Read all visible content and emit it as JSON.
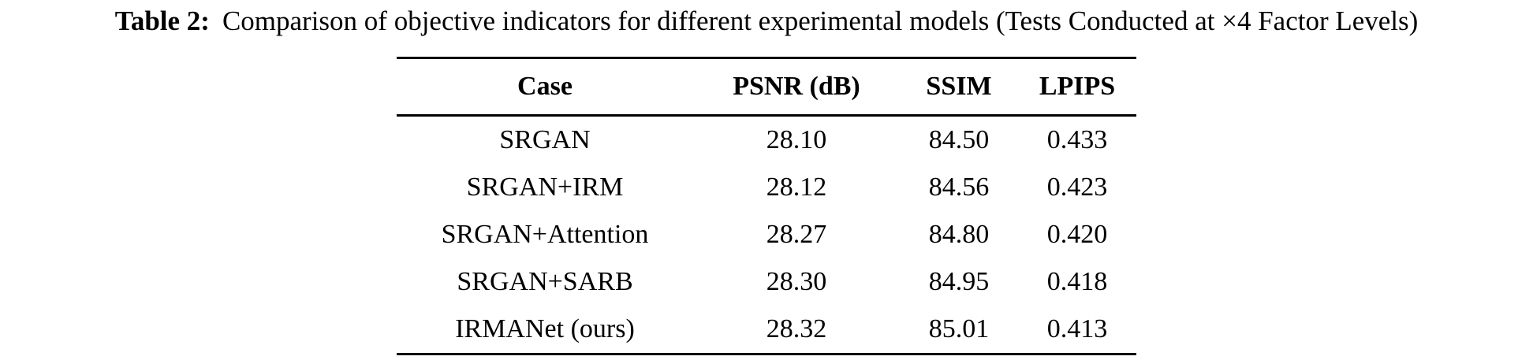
{
  "caption": {
    "label": "Table 2:",
    "text": "Comparison of objective indicators for different experimental models (Tests Conducted at ×4 Factor Levels)"
  },
  "table": {
    "columns": [
      "Case",
      "PSNR (dB)",
      "SSIM",
      "LPIPS"
    ],
    "rows": [
      [
        "SRGAN",
        "28.10",
        "84.50",
        "0.433"
      ],
      [
        "SRGAN+IRM",
        "28.12",
        "84.56",
        "0.423"
      ],
      [
        "SRGAN+Attention",
        "28.27",
        "84.80",
        "0.420"
      ],
      [
        "SRGAN+SARB",
        "28.30",
        "84.95",
        "0.418"
      ],
      [
        "IRMANet (ours)",
        "28.32",
        "85.01",
        "0.413"
      ]
    ]
  },
  "colors": {
    "text": "#000000",
    "background": "#ffffff",
    "rule": "#000000"
  }
}
